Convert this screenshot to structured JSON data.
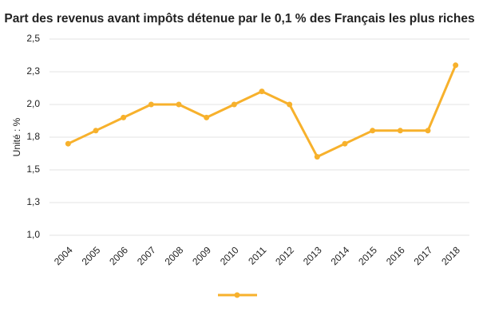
{
  "chart_data": {
    "type": "line",
    "title": "Part des revenus avant impôts détenue par le 0,1 % des Français les plus riches",
    "y_label": "Unité : %",
    "categories": [
      "2004",
      "2005",
      "2006",
      "2007",
      "2008",
      "2009",
      "2010",
      "2011",
      "2012",
      "2013",
      "2014",
      "2015",
      "2016",
      "2017",
      "2018"
    ],
    "series": [
      {
        "color": "#f7b12c",
        "values": [
          1.7,
          1.8,
          1.9,
          2.0,
          2.0,
          1.9,
          2.0,
          2.1,
          2.0,
          1.6,
          1.7,
          1.8,
          1.8,
          1.8,
          2.3
        ]
      }
    ],
    "ylim": [
      1.0,
      2.5
    ],
    "yticks": [
      {
        "value": 1.0,
        "label": "1,0"
      },
      {
        "value": 1.25,
        "label": "1,3"
      },
      {
        "value": 1.5,
        "label": "1,5"
      },
      {
        "value": 1.75,
        "label": "1,8"
      },
      {
        "value": 2.0,
        "label": "2,0"
      },
      {
        "value": 2.25,
        "label": "2,3"
      },
      {
        "value": 2.5,
        "label": "2,5"
      }
    ],
    "grid": true,
    "legend": "bottom"
  }
}
